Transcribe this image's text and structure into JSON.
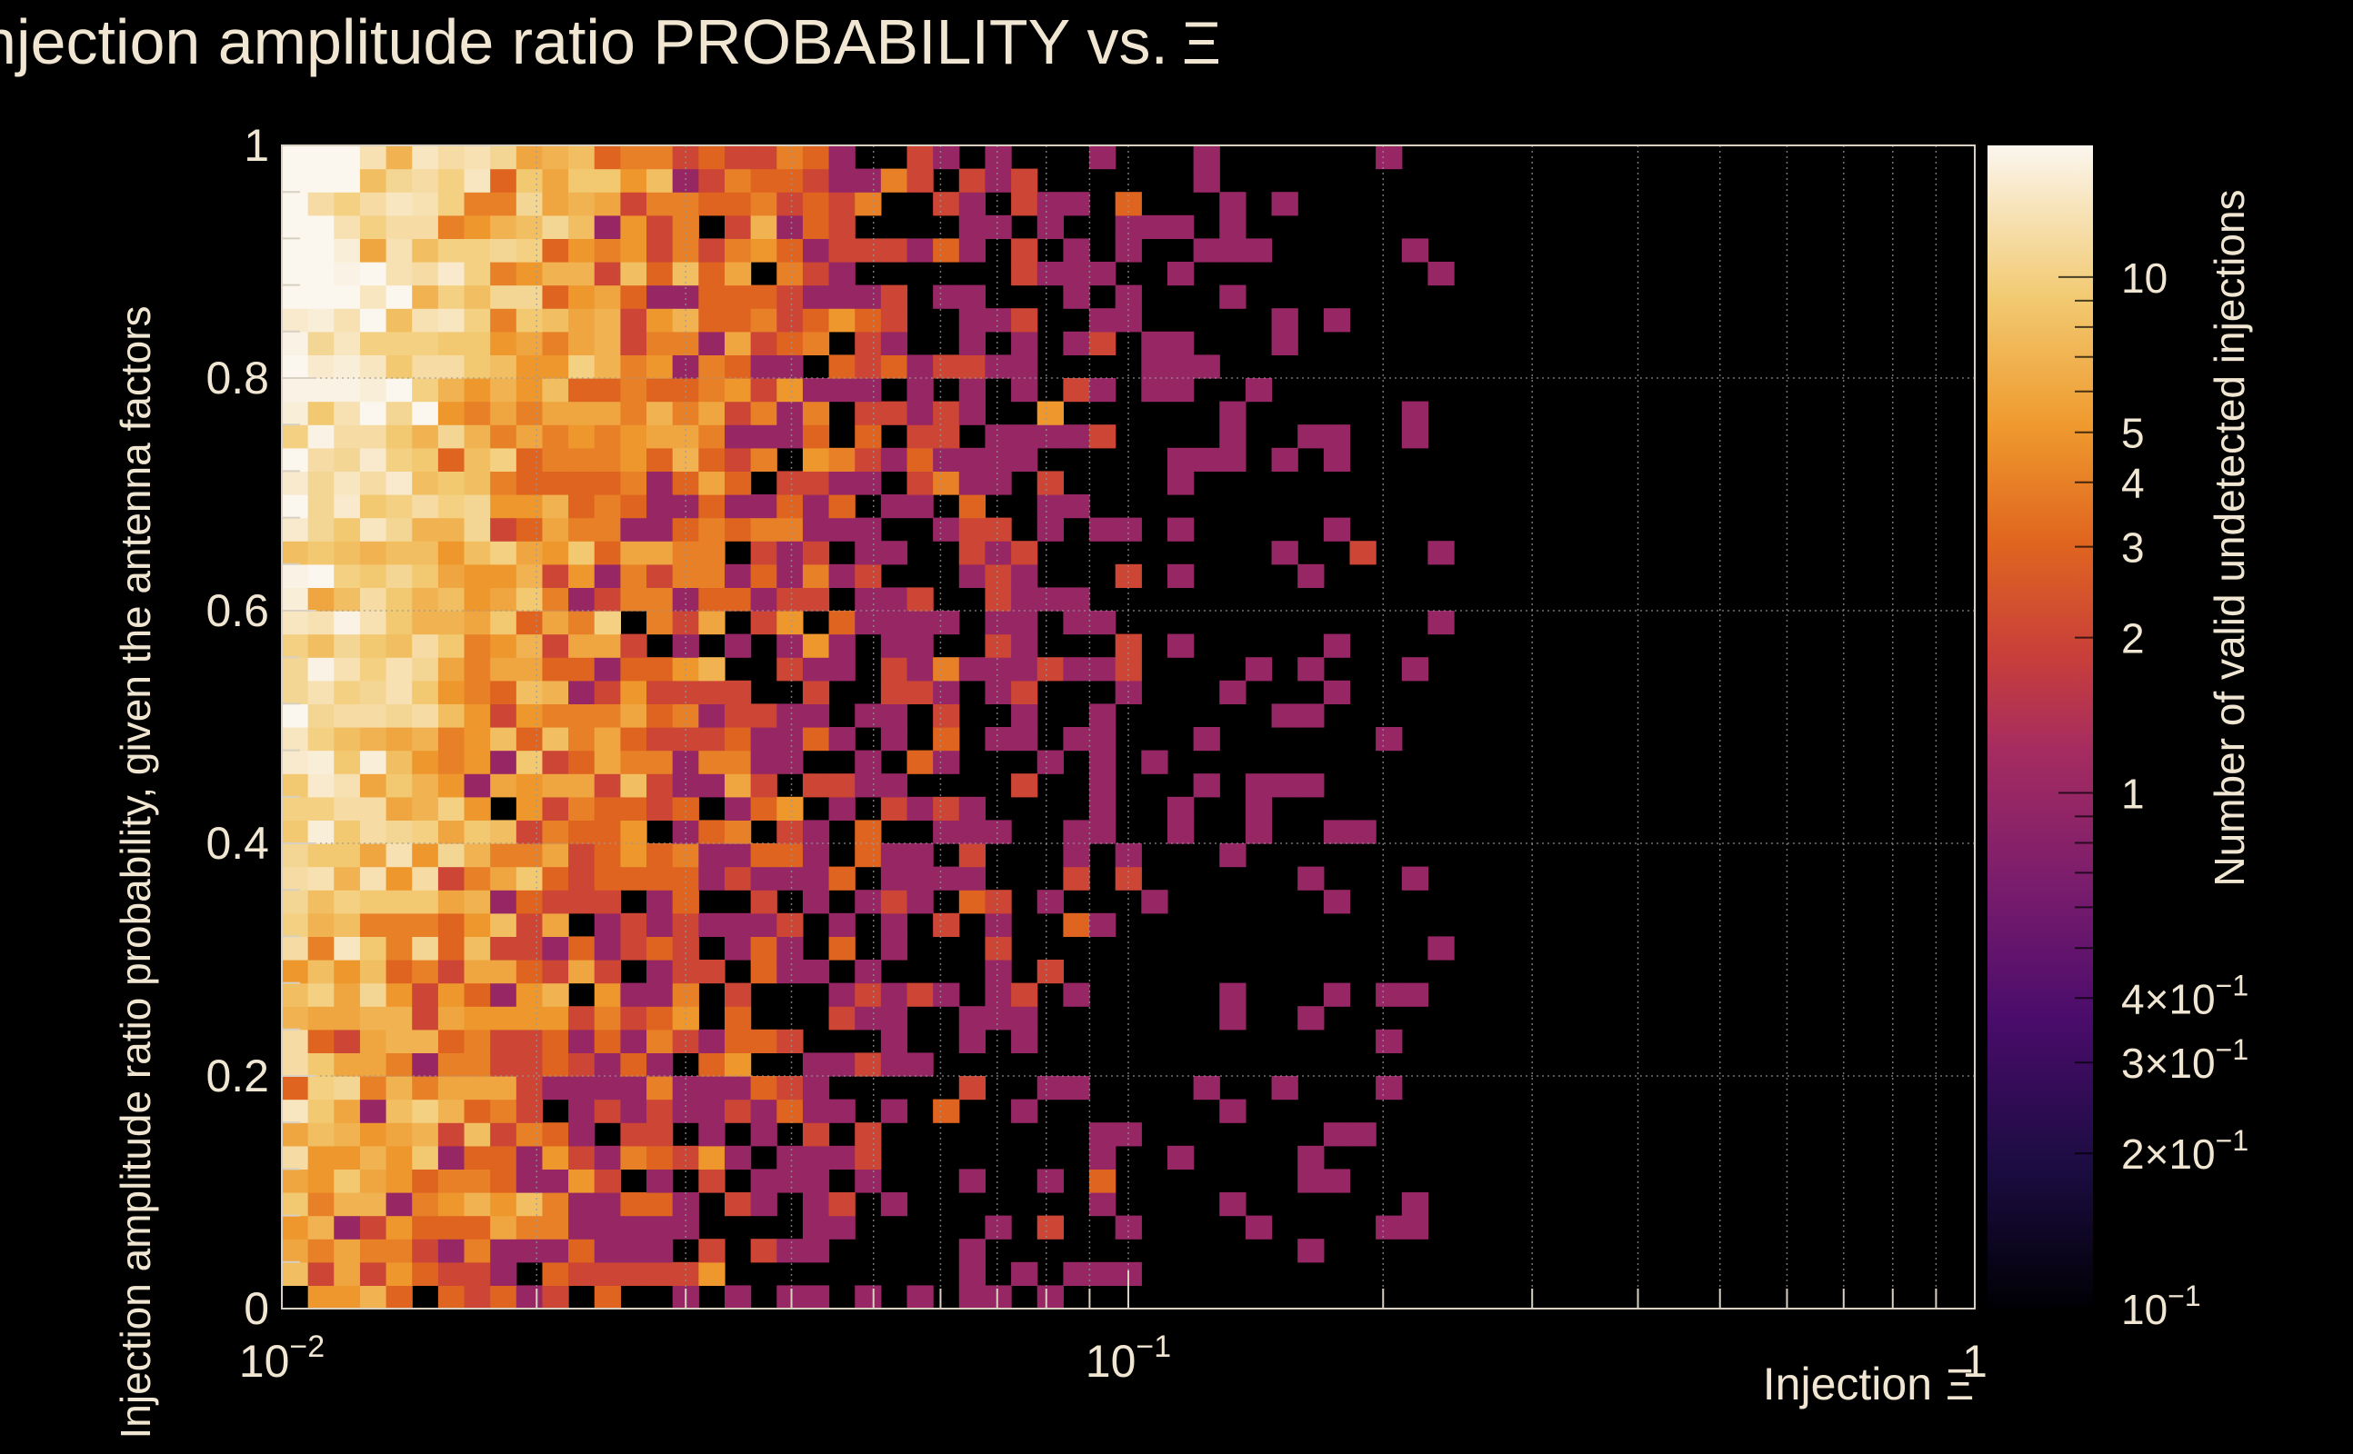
{
  "chart_data": {
    "type": "heatmap",
    "title": "Injection amplitude ratio PROBABILITY vs.",
    "title_symbol": "Ξ",
    "xlabel": "Injection",
    "xlabel_symbol": "Ξ",
    "ylabel": "Injection amplitude ratio probability, given the antenna factors",
    "zlabel": "Number of valid undetected injections",
    "x_scale": "log",
    "z_scale": "log",
    "xlim": [
      0.01,
      1
    ],
    "ylim": [
      0,
      1
    ],
    "zlim": [
      0.1,
      18
    ],
    "x_bins": 65,
    "y_bins": 50,
    "grid": true,
    "x_tick_labels": [
      {
        "value": 0.01,
        "base": "10",
        "exp": "−2"
      },
      {
        "value": 0.1,
        "base": "10",
        "exp": "−1"
      },
      {
        "value": 1,
        "base": "1",
        "exp": ""
      }
    ],
    "y_tick_labels": [
      {
        "value": 0,
        "label": "0"
      },
      {
        "value": 0.2,
        "label": "0.2"
      },
      {
        "value": 0.4,
        "label": "0.4"
      },
      {
        "value": 0.6,
        "label": "0.6"
      },
      {
        "value": 0.8,
        "label": "0.8"
      },
      {
        "value": 1,
        "label": "1"
      }
    ],
    "z_tick_labels": [
      {
        "value": 10,
        "base": "10",
        "exp": ""
      },
      {
        "value": 5,
        "base": "5",
        "exp": ""
      },
      {
        "value": 4,
        "base": "4",
        "exp": ""
      },
      {
        "value": 3,
        "base": "3",
        "exp": ""
      },
      {
        "value": 2,
        "base": "2",
        "exp": ""
      },
      {
        "value": 1,
        "base": "1",
        "exp": ""
      },
      {
        "value": 0.4,
        "base": "4×10",
        "exp": "−1"
      },
      {
        "value": 0.3,
        "base": "3×10",
        "exp": "−1"
      },
      {
        "value": 0.2,
        "base": "2×10",
        "exp": "−1"
      },
      {
        "value": 0.1,
        "base": "10",
        "exp": "−1"
      }
    ],
    "density_model": {
      "description_free": true,
      "x_decay_per_decade": 1.6,
      "y_gain": 1.2,
      "peak": 16
    },
    "colormap": [
      "#000004",
      "#1f0c48",
      "#550f6d",
      "#88226a",
      "#ba3655",
      "#e35933",
      "#f98c0a",
      "#f9c932",
      "#fcffa4",
      "#ffffff"
    ]
  }
}
